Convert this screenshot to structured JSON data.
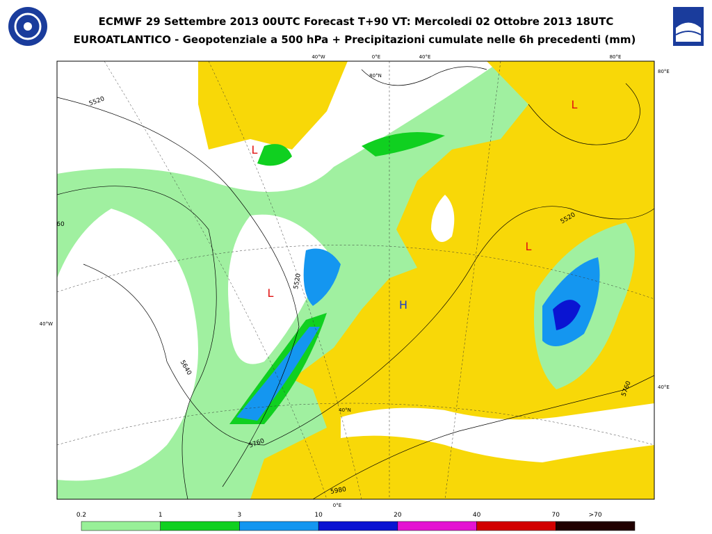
{
  "header": {
    "title": "ECMWF 29 Settembre 2013 00UTC Forecast T+90 VT: Mercoledi 02 Ottobre 2013 18UTC",
    "subtitle": "EUROATLANTICO - Geopotenziale a 500 hPa + Precipitazioni cumulate nelle 6h precedenti (mm)"
  },
  "map": {
    "pressure_centers": [
      "L",
      "L",
      "L",
      "L",
      "H"
    ],
    "contour_labels": [
      "5520",
      "5520",
      "5520",
      "5640",
      "5760",
      "5760",
      "5980",
      "60"
    ],
    "grid_labels": [
      "40°W",
      "0°E",
      "40°E",
      "80°E",
      "80°E",
      "40°W",
      "40°E",
      "80°N",
      "40°N",
      "0°E"
    ]
  },
  "legend": {
    "labels": [
      "0.2",
      "1",
      "3",
      "10",
      "20",
      "40",
      "70",
      ">70"
    ],
    "colors": [
      "#98f098",
      "#10d020",
      "#1496f0",
      "#0a14d2",
      "#e414d2",
      "#d20000",
      "#200000"
    ]
  }
}
